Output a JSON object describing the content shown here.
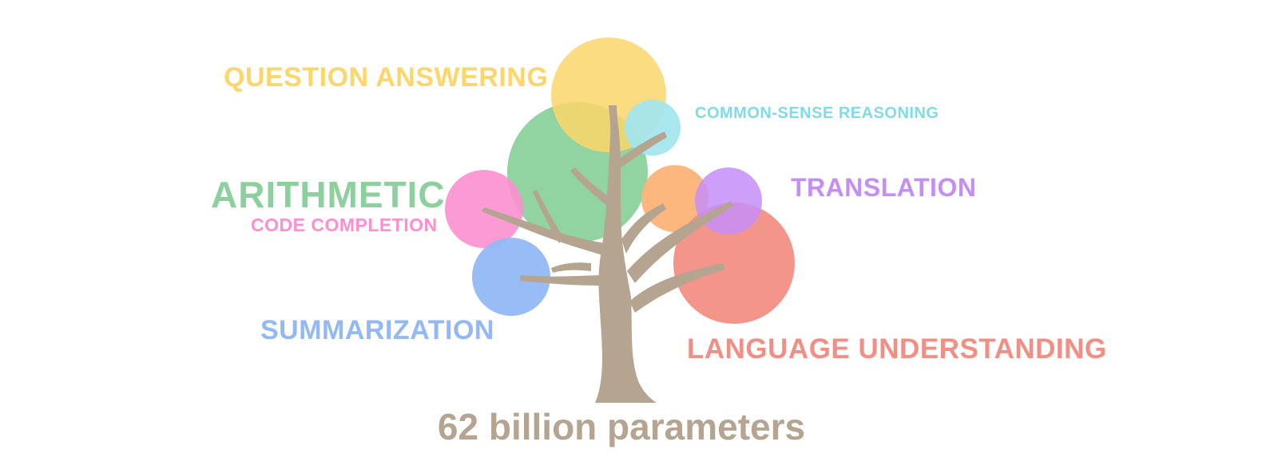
{
  "colors": {
    "trunk": "#b5a48f",
    "question_answering": "#fcd66a",
    "common_sense_reasoning": "#7fdbe8",
    "arithmetic": "#8cd19d",
    "code_completion": "#fc8fcf",
    "translation": "#c58ef7",
    "summarization": "#92b9f5",
    "language_understanding": "#f28f84",
    "orange_circle": "#fcb377"
  },
  "labels": {
    "question_answering": "QUESTION ANSWERING",
    "common_sense_reasoning": "COMMON-SENSE REASONING",
    "arithmetic": "ARITHMETIC",
    "code_completion": "CODE COMPLETION",
    "translation": "TRANSLATION",
    "summarization": "SUMMARIZATION",
    "language_understanding": "LANGUAGE UNDERSTANDING"
  },
  "caption": "62 billion parameters"
}
